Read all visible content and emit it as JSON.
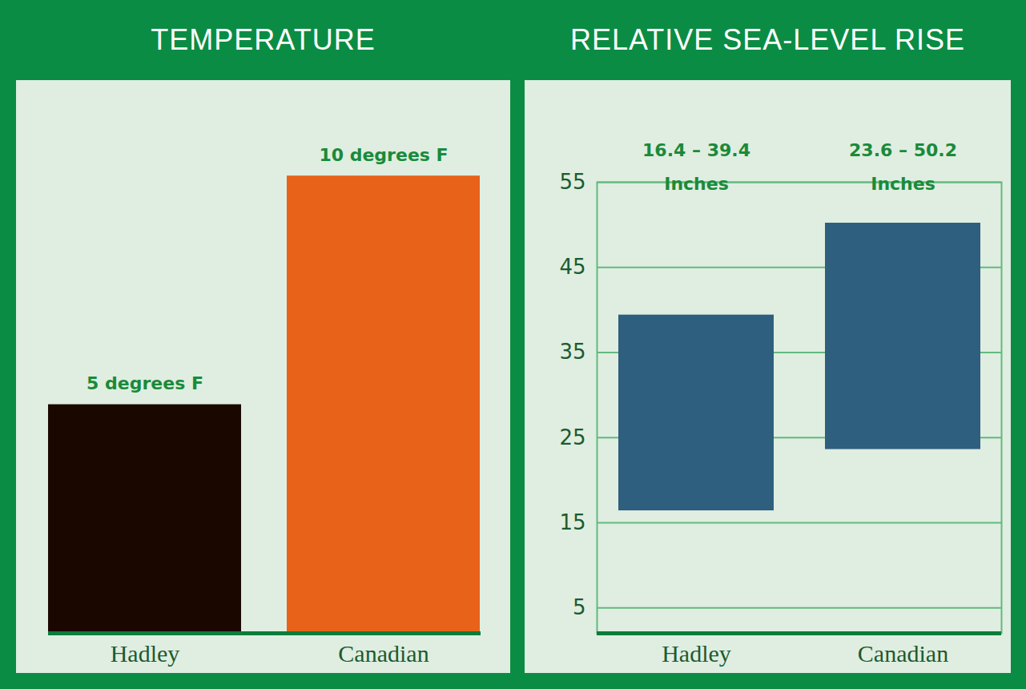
{
  "chart_data": [
    {
      "type": "bar",
      "title": "TEMPERATURE",
      "categories": [
        "Hadley",
        "Canadian"
      ],
      "values": [
        5,
        10
      ],
      "value_labels": [
        "5 degrees F",
        "10 degrees F"
      ],
      "data_labels": true,
      "colors": [
        "#1a0800",
        "#e8621a"
      ],
      "ylim": [
        0,
        12
      ],
      "tick_labels": "x"
    },
    {
      "type": "range",
      "title": "RELATIVE SEA-LEVEL RISE",
      "categories": [
        "Hadley",
        "Canadian"
      ],
      "low": [
        16.4,
        23.6
      ],
      "high": [
        39.4,
        50.2
      ],
      "value_labels": [
        "16.4 – 39.4 Inches",
        "23.6 – 50.2 Inches"
      ],
      "data_labels": true,
      "color": "#2f5f7f",
      "ylim": [
        2,
        55
      ],
      "yticks": [
        5,
        15,
        25,
        35,
        45,
        55
      ],
      "grid": true
    }
  ]
}
